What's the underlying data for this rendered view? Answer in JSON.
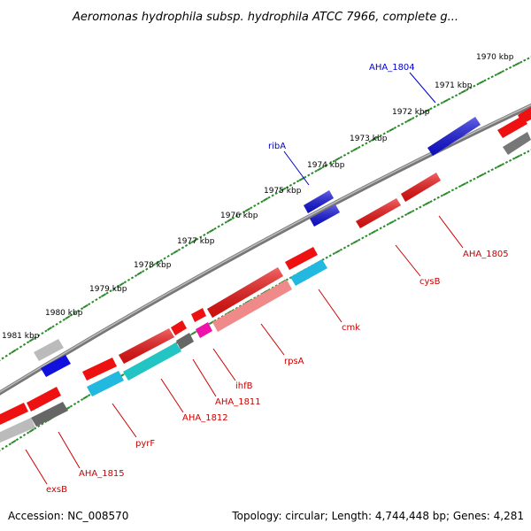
{
  "title": "Aeromonas hydrophila subsp. hydrophila ATCC 7966, complete g...",
  "footer": {
    "accession": "Accession: NC_008570",
    "summary": "Topology: circular; Length: 4,744,448 bp; Genes: 4,281"
  },
  "colors": {
    "backbone": "#8a8a8a",
    "tick_dots": "#2a8a2a",
    "red_gene": "#ee1111",
    "blue_gene": "#1111dd",
    "gray_gene": "#777777",
    "silver_gene": "#bbbbbb",
    "cyan_gene": "#22b8e0",
    "teal_gene": "#22c4c4",
    "salmon_gene": "#f08a8a",
    "magenta_gene": "#ee11aa",
    "blue_label": "#0000cc",
    "red_label": "#cc0000"
  },
  "kbp_labels": [
    "1970 kbp",
    "1971 kbp",
    "1972 kbp",
    "1973 kbp",
    "1974 kbp",
    "1975 kbp",
    "1976 kbp",
    "1977 kbp",
    "1978 kbp",
    "1979 kbp",
    "1980 kbp",
    "1981 kbp"
  ],
  "gene_labels": [
    {
      "text": "AHA_1804",
      "color": "blue"
    },
    {
      "text": "ribA",
      "color": "blue"
    },
    {
      "text": "AHA_1805",
      "color": "red"
    },
    {
      "text": "cysB",
      "color": "red"
    },
    {
      "text": "cmk",
      "color": "red"
    },
    {
      "text": "rpsA",
      "color": "red"
    },
    {
      "text": "ihfB",
      "color": "red"
    },
    {
      "text": "AHA_1811",
      "color": "red"
    },
    {
      "text": "AHA_1812",
      "color": "red"
    },
    {
      "text": "pyrF",
      "color": "red"
    },
    {
      "text": "AHA_1815",
      "color": "red"
    },
    {
      "text": "exsB",
      "color": "red"
    }
  ]
}
